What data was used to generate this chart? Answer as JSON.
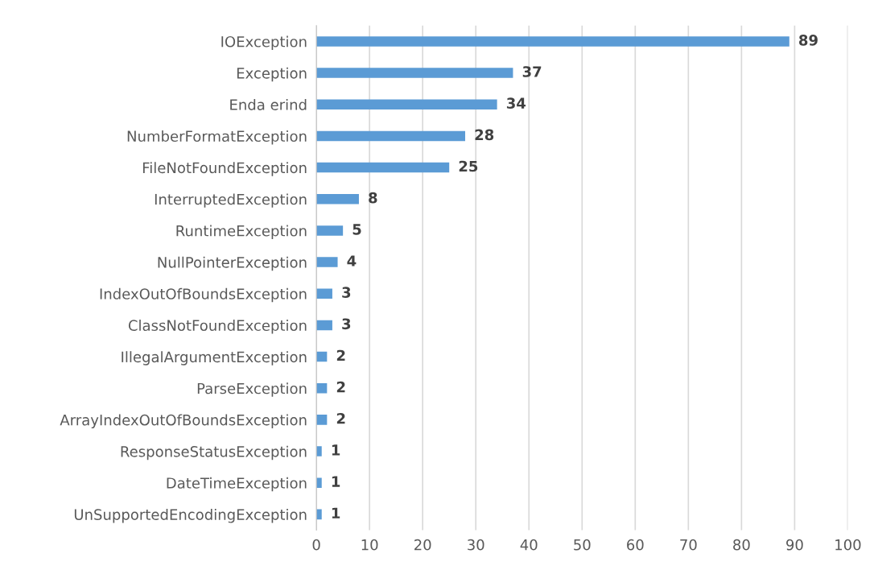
{
  "chart_data": {
    "type": "bar",
    "orientation": "horizontal",
    "categories": [
      "IOException",
      "Exception",
      "Enda erind",
      "NumberFormatException",
      "FileNotFoundException",
      "InterruptedException",
      "RuntimeException",
      "NullPointerException",
      "IndexOutOfBoundsException",
      "ClassNotFoundException",
      "IllegalArgumentException",
      "ParseException",
      "ArrayIndexOutOfBoundsException",
      "ResponseStatusException",
      "DateTimeException",
      "UnSupportedEncodingException"
    ],
    "values": [
      89,
      37,
      34,
      28,
      25,
      8,
      5,
      4,
      3,
      3,
      2,
      2,
      2,
      1,
      1,
      1
    ],
    "color": "#5b9bd5",
    "xlim": [
      0,
      100
    ],
    "xticks": [
      0,
      10,
      20,
      30,
      40,
      50,
      60,
      70,
      80,
      90,
      100
    ],
    "grid": "x",
    "data_labels": true
  }
}
